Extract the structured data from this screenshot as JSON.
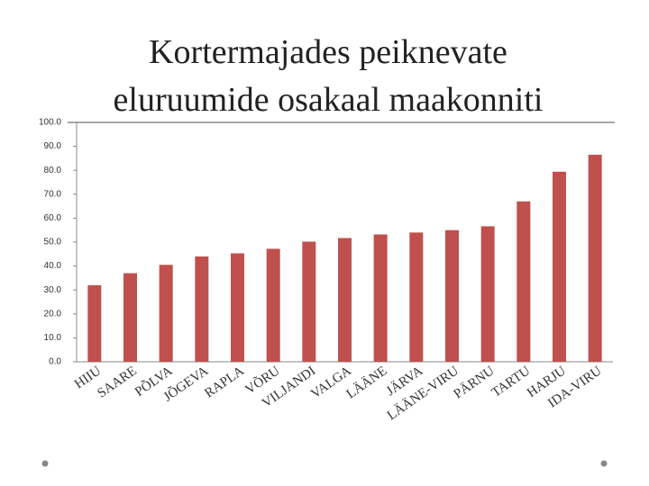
{
  "chart_data": {
    "type": "bar",
    "title": [
      "Kortermajades peiknevate",
      "eluruumide osakaal maakonniti"
    ],
    "categories": [
      "HIIU",
      "SAARE",
      "PÕLVA",
      "JÕGEVA",
      "RAPLA",
      "VÕRU",
      "VILJANDI",
      "VALGA",
      "LÄÄNE",
      "JÄRVA",
      "LÄÄNE-VIRU",
      "PÄRNU",
      "TARTU",
      "HARJU",
      "IDA-VIRU"
    ],
    "values": [
      32,
      37,
      40.5,
      44,
      45.3,
      47.2,
      50.2,
      51.7,
      53.2,
      54,
      55,
      56.6,
      67,
      79.4,
      86.5
    ],
    "color": "#c0504d",
    "ylim": [
      0,
      100
    ],
    "yticks": [
      {
        "value": 0,
        "label": "0.0"
      },
      {
        "value": 10,
        "label": "10.0"
      },
      {
        "value": 20,
        "label": "20.0"
      },
      {
        "value": 30,
        "label": "30.0"
      },
      {
        "value": 40,
        "label": "40.0"
      },
      {
        "value": 50,
        "label": "50.0"
      },
      {
        "value": 60,
        "label": "60.0"
      },
      {
        "value": 70,
        "label": "70.0"
      },
      {
        "value": 80,
        "label": "80.0"
      },
      {
        "value": 90,
        "label": "90.0"
      },
      {
        "value": 100,
        "label": "100.0"
      }
    ],
    "grid": false
  }
}
